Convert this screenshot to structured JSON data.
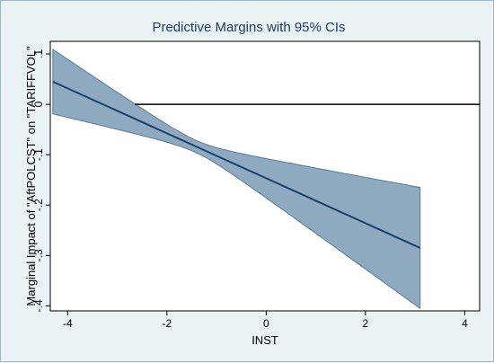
{
  "chart_data": {
    "type": "area",
    "title": "Predictive Margins with 95% CIs",
    "xlabel": "INST",
    "ylabel": "Marginal Impact of \"AftPOLCST\" on \"TARIFFVOL\"",
    "xlim": [
      -4.35,
      4.3
    ],
    "ylim": [
      -0.41,
      0.125
    ],
    "xticks": [
      -4,
      -2,
      0,
      2,
      4
    ],
    "xtick_labels": [
      "-4",
      "-2",
      "0",
      "2",
      "4"
    ],
    "yticks": [
      0.1,
      0,
      -0.1,
      -0.2,
      -0.3,
      -0.4
    ],
    "ytick_labels": [
      ".1",
      "0",
      "-.1",
      "-.2",
      "-.3",
      "-.4"
    ],
    "reference_line_y": 0,
    "grid": false,
    "legend": "none",
    "series": [
      {
        "x": [
          -4.3,
          3.1
        ],
        "estimate": [
          0.045,
          -0.285
        ],
        "ci_lower": [
          -0.018,
          -0.405
        ],
        "ci_upper": [
          0.11,
          -0.165
        ]
      }
    ],
    "colors": {
      "band": "#8faac0",
      "band_edge": "#5a7a96",
      "line": "#1a3f6b",
      "refline": "#000000",
      "plot_bg": "#ffffff",
      "page_bg": "#eaf2f3",
      "title": "#1e3a6e"
    }
  }
}
